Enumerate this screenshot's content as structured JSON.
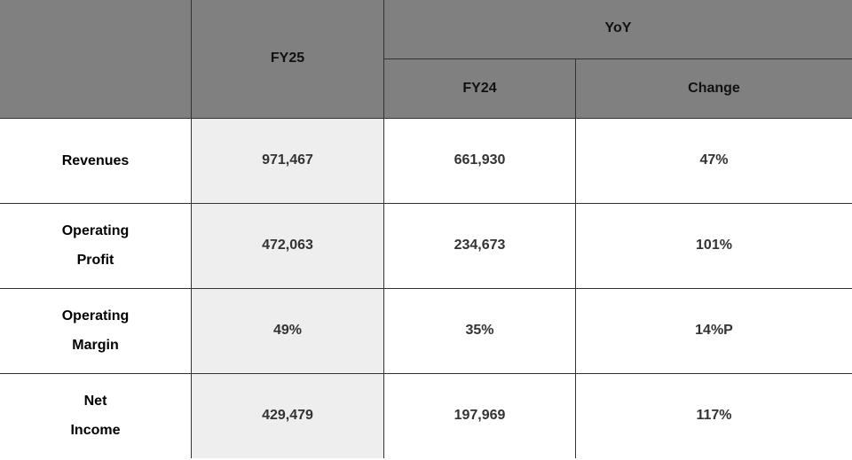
{
  "header": {
    "fy25": "FY25",
    "yoy": "YoY",
    "fy24": "FY24",
    "change": "Change"
  },
  "colors": {
    "header_bg": "#808080",
    "highlight_bg": "#eeeeee",
    "border": "#333333"
  },
  "rows": [
    {
      "label1": "Revenues",
      "label2": "",
      "fy25": "971,467",
      "fy24": "661,930",
      "change": "47%"
    },
    {
      "label1": "Operating",
      "label2": "Profit",
      "fy25": "472,063",
      "fy24": "234,673",
      "change": "101%"
    },
    {
      "label1": "Operating",
      "label2": "Margin",
      "fy25": "49%",
      "fy24": "35%",
      "change": "14%P"
    },
    {
      "label1": "Net",
      "label2": "Income",
      "fy25": "429,479",
      "fy24": "197,969",
      "change": "117%"
    }
  ]
}
